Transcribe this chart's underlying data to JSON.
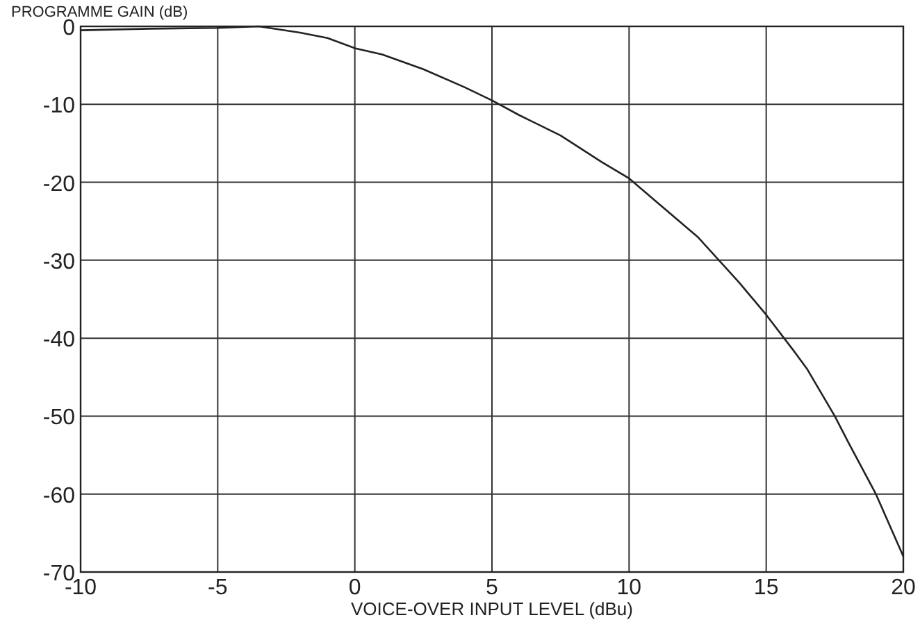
{
  "chart_data": {
    "type": "line",
    "xlabel": "VOICE-OVER INPUT LEVEL (dBu)",
    "ylabel": "PROGRAMME GAIN (dB)",
    "series": [
      {
        "color": "#222222",
        "x": [
          -10,
          -7.5,
          -5,
          -3.5,
          -2,
          -1,
          0,
          1,
          2.5,
          4,
          5,
          6,
          7.5,
          9,
          10,
          11,
          12.5,
          14,
          15,
          16,
          16.5,
          17.5,
          18,
          19,
          20
        ],
        "values": [
          -0.5,
          -0.3,
          -0.2,
          0,
          -0.8,
          -1.5,
          -2.8,
          -3.6,
          -5.5,
          -7.8,
          -9.5,
          -11.4,
          -14,
          -17.4,
          -19.5,
          -22.5,
          -27,
          -32.8,
          -37,
          -41.6,
          -44,
          -50,
          -53.4,
          -60,
          -68
        ]
      }
    ],
    "xlim": [
      -10,
      20
    ],
    "ylim": [
      -70,
      0
    ],
    "xticks": [
      -10,
      -5,
      0,
      5,
      10,
      15,
      20
    ],
    "yticks": [
      -70,
      -60,
      -50,
      -40,
      -30,
      -20,
      -10,
      0
    ],
    "grid": true,
    "line_style": "solid"
  }
}
